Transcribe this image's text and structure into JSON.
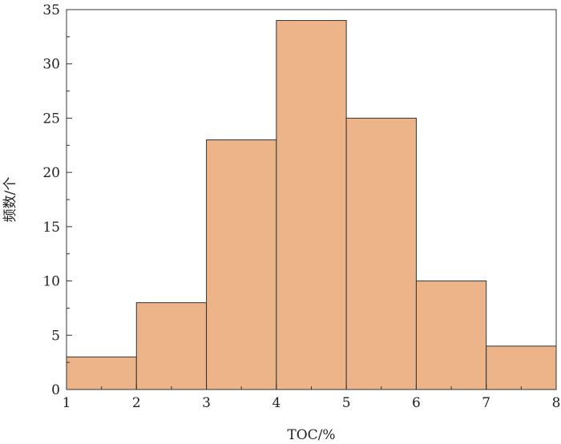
{
  "chart_data": {
    "type": "bar",
    "subtype": "histogram",
    "title": "",
    "xlabel": "TOC/%",
    "ylabel": "频数/个",
    "xlim": [
      1,
      8
    ],
    "ylim": [
      0,
      35
    ],
    "bins": [
      {
        "x0": 1,
        "x1": 2,
        "value": 3
      },
      {
        "x0": 2,
        "x1": 3,
        "value": 8
      },
      {
        "x0": 3,
        "x1": 4,
        "value": 23
      },
      {
        "x0": 4,
        "x1": 5,
        "value": 34
      },
      {
        "x0": 5,
        "x1": 6,
        "value": 25
      },
      {
        "x0": 6,
        "x1": 7,
        "value": 10
      },
      {
        "x0": 7,
        "x1": 8,
        "value": 4
      }
    ],
    "xticks": [
      "1",
      "2",
      "3",
      "4",
      "5",
      "6",
      "7",
      "8"
    ],
    "yticks": [
      "0",
      "5",
      "10",
      "15",
      "20",
      "25",
      "30",
      "35"
    ],
    "grid": false,
    "bar_color": "#EDB48A",
    "edge_color": "#333333"
  }
}
